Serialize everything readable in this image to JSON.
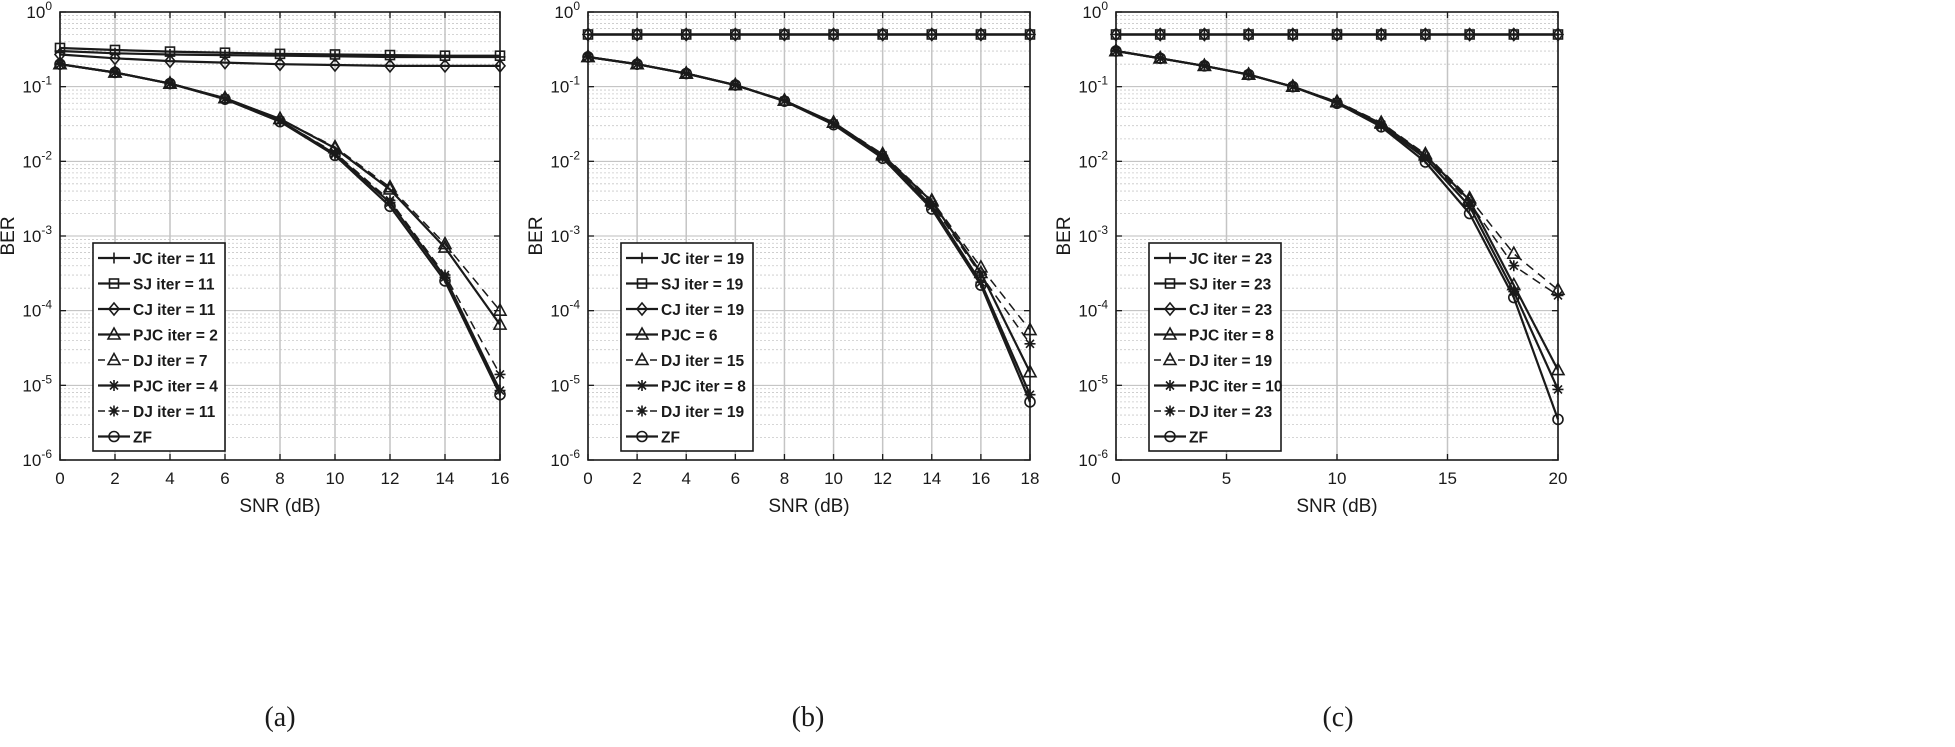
{
  "chart_data": [
    {
      "type": "line",
      "panel": "(a)",
      "caption": "(a)",
      "xlabel": "SNR (dB)",
      "ylabel": "BER",
      "yscale": "log",
      "xlim": [
        0,
        16
      ],
      "ylim": [
        1e-06,
        1
      ],
      "xticks": [
        0,
        2,
        4,
        6,
        8,
        10,
        12,
        14,
        16
      ],
      "xtick_labels": [
        "0",
        "2",
        "4",
        "6",
        "8",
        "10",
        "12",
        "14",
        "16"
      ],
      "yticks": [
        {
          "value": 1,
          "base": "10",
          "exp": "0"
        },
        {
          "value": 0.1,
          "base": "10",
          "exp": "-1"
        },
        {
          "value": 0.01,
          "base": "10",
          "exp": "-2"
        },
        {
          "value": 0.001,
          "base": "10",
          "exp": "-3"
        },
        {
          "value": 0.0001,
          "base": "10",
          "exp": "-4"
        },
        {
          "value": 1e-05,
          "base": "10",
          "exp": "-5"
        },
        {
          "value": 1e-06,
          "base": "10",
          "exp": "-6"
        }
      ],
      "grid": true,
      "legend_position": "lower-left",
      "x": [
        0,
        2,
        4,
        6,
        8,
        10,
        12,
        14,
        16
      ],
      "series": [
        {
          "name": "JC iter = 11",
          "marker": "plus",
          "dashed": false,
          "values": [
            0.3,
            0.28,
            0.27,
            0.265,
            0.26,
            0.255,
            0.25,
            0.25,
            0.25
          ]
        },
        {
          "name": "SJ iter = 11",
          "marker": "square",
          "dashed": false,
          "values": [
            0.33,
            0.31,
            0.295,
            0.285,
            0.275,
            0.27,
            0.265,
            0.26,
            0.26
          ]
        },
        {
          "name": "CJ iter = 11",
          "marker": "diamond",
          "dashed": false,
          "values": [
            0.27,
            0.24,
            0.22,
            0.21,
            0.2,
            0.195,
            0.19,
            0.19,
            0.19
          ]
        },
        {
          "name": "PJC iter = 2",
          "marker": "triangle",
          "dashed": false,
          "values": [
            0.2,
            0.155,
            0.11,
            0.07,
            0.037,
            0.015,
            0.0042,
            0.0007,
            6.5e-05
          ]
        },
        {
          "name": "DJ iter = 7",
          "marker": "triangle",
          "dashed": true,
          "values": [
            0.2,
            0.155,
            0.11,
            0.07,
            0.037,
            0.0155,
            0.0045,
            0.00078,
            0.0001
          ]
        },
        {
          "name": "PJC iter = 4",
          "marker": "asterisk",
          "dashed": false,
          "values": [
            0.2,
            0.155,
            0.11,
            0.069,
            0.035,
            0.0125,
            0.0028,
            0.00028,
            8.5e-06
          ]
        },
        {
          "name": "DJ iter = 11",
          "marker": "asterisk",
          "dashed": true,
          "values": [
            0.2,
            0.155,
            0.11,
            0.069,
            0.035,
            0.013,
            0.003,
            0.0003,
            1.4e-05
          ]
        },
        {
          "name": "ZF",
          "marker": "circle",
          "dashed": false,
          "values": [
            0.2,
            0.155,
            0.11,
            0.068,
            0.034,
            0.012,
            0.0025,
            0.00025,
            7.5e-06
          ]
        }
      ]
    },
    {
      "type": "line",
      "panel": "(b)",
      "caption": "(b)",
      "xlabel": "SNR (dB)",
      "ylabel": "BER",
      "yscale": "log",
      "xlim": [
        0,
        18
      ],
      "ylim": [
        1e-06,
        1
      ],
      "xticks": [
        0,
        2,
        4,
        6,
        8,
        10,
        12,
        14,
        16,
        18
      ],
      "xtick_labels": [
        "0",
        "2",
        "4",
        "6",
        "8",
        "10",
        "12",
        "14",
        "16",
        "18"
      ],
      "yticks": [
        {
          "value": 1,
          "base": "10",
          "exp": "0"
        },
        {
          "value": 0.1,
          "base": "10",
          "exp": "-1"
        },
        {
          "value": 0.01,
          "base": "10",
          "exp": "-2"
        },
        {
          "value": 0.001,
          "base": "10",
          "exp": "-3"
        },
        {
          "value": 0.0001,
          "base": "10",
          "exp": "-4"
        },
        {
          "value": 1e-05,
          "base": "10",
          "exp": "-5"
        },
        {
          "value": 1e-06,
          "base": "10",
          "exp": "-6"
        }
      ],
      "grid": true,
      "legend_position": "lower-left",
      "x": [
        0,
        2,
        4,
        6,
        8,
        10,
        12,
        14,
        16,
        18
      ],
      "series": [
        {
          "name": "JC iter = 19",
          "marker": "plus",
          "dashed": false,
          "values": [
            0.5,
            0.5,
            0.5,
            0.5,
            0.5,
            0.5,
            0.5,
            0.5,
            0.5,
            0.5
          ]
        },
        {
          "name": "SJ iter = 19",
          "marker": "square",
          "dashed": false,
          "values": [
            0.5,
            0.5,
            0.5,
            0.5,
            0.5,
            0.5,
            0.5,
            0.5,
            0.5,
            0.5
          ]
        },
        {
          "name": "CJ iter = 19",
          "marker": "diamond",
          "dashed": false,
          "values": [
            0.5,
            0.5,
            0.5,
            0.5,
            0.5,
            0.5,
            0.5,
            0.5,
            0.5,
            0.5
          ]
        },
        {
          "name": "PJC = 6",
          "marker": "triangle",
          "dashed": false,
          "values": [
            0.25,
            0.2,
            0.15,
            0.105,
            0.065,
            0.033,
            0.012,
            0.0029,
            0.00032,
            1.5e-05
          ]
        },
        {
          "name": "DJ iter = 15",
          "marker": "triangle",
          "dashed": true,
          "values": [
            0.25,
            0.2,
            0.15,
            0.105,
            0.065,
            0.033,
            0.0125,
            0.003,
            0.00038,
            5.5e-05
          ]
        },
        {
          "name": "PJC iter = 8",
          "marker": "asterisk",
          "dashed": false,
          "values": [
            0.25,
            0.2,
            0.15,
            0.105,
            0.065,
            0.032,
            0.0115,
            0.0025,
            0.00024,
            7.5e-06
          ]
        },
        {
          "name": "DJ iter = 19",
          "marker": "asterisk",
          "dashed": true,
          "values": [
            0.25,
            0.2,
            0.15,
            0.105,
            0.065,
            0.032,
            0.012,
            0.0027,
            0.0003,
            3.6e-05
          ]
        },
        {
          "name": "ZF",
          "marker": "circle",
          "dashed": false,
          "values": [
            0.25,
            0.2,
            0.15,
            0.105,
            0.064,
            0.031,
            0.011,
            0.0023,
            0.00022,
            6e-06
          ]
        }
      ]
    },
    {
      "type": "line",
      "panel": "(c)",
      "caption": "(c)",
      "xlabel": "SNR (dB)",
      "ylabel": "BER",
      "yscale": "log",
      "xlim": [
        0,
        20
      ],
      "ylim": [
        1e-06,
        1
      ],
      "xticks": [
        0,
        5,
        10,
        15,
        20
      ],
      "xtick_labels": [
        "0",
        "5",
        "10",
        "15",
        "20"
      ],
      "yticks": [
        {
          "value": 1,
          "base": "10",
          "exp": "0"
        },
        {
          "value": 0.1,
          "base": "10",
          "exp": "-1"
        },
        {
          "value": 0.01,
          "base": "10",
          "exp": "-2"
        },
        {
          "value": 0.001,
          "base": "10",
          "exp": "-3"
        },
        {
          "value": 0.0001,
          "base": "10",
          "exp": "-4"
        },
        {
          "value": 1e-05,
          "base": "10",
          "exp": "-5"
        },
        {
          "value": 1e-06,
          "base": "10",
          "exp": "-6"
        }
      ],
      "grid": true,
      "legend_position": "lower-left",
      "x": [
        0,
        2,
        4,
        6,
        8,
        10,
        12,
        14,
        16,
        18,
        20
      ],
      "series": [
        {
          "name": "JC iter = 23",
          "marker": "plus",
          "dashed": false,
          "values": [
            0.5,
            0.5,
            0.5,
            0.5,
            0.5,
            0.5,
            0.5,
            0.5,
            0.5,
            0.5,
            0.5
          ]
        },
        {
          "name": "SJ iter = 23",
          "marker": "square",
          "dashed": false,
          "values": [
            0.5,
            0.5,
            0.5,
            0.5,
            0.5,
            0.5,
            0.5,
            0.5,
            0.5,
            0.5,
            0.5
          ]
        },
        {
          "name": "CJ iter = 23",
          "marker": "diamond",
          "dashed": false,
          "values": [
            0.5,
            0.5,
            0.5,
            0.5,
            0.5,
            0.5,
            0.5,
            0.5,
            0.5,
            0.5,
            0.5
          ]
        },
        {
          "name": "PJC iter = 8",
          "marker": "triangle",
          "dashed": false,
          "values": [
            0.3,
            0.24,
            0.19,
            0.145,
            0.1,
            0.062,
            0.032,
            0.012,
            0.003,
            0.00022,
            1.6e-05
          ]
        },
        {
          "name": "DJ iter = 19",
          "marker": "triangle",
          "dashed": true,
          "values": [
            0.3,
            0.24,
            0.19,
            0.145,
            0.1,
            0.063,
            0.033,
            0.0125,
            0.0032,
            0.00058,
            0.00019
          ]
        },
        {
          "name": "PJC iter = 10",
          "marker": "asterisk",
          "dashed": false,
          "values": [
            0.3,
            0.24,
            0.19,
            0.145,
            0.1,
            0.061,
            0.03,
            0.011,
            0.0025,
            0.00018,
            8.8e-06
          ]
        },
        {
          "name": "DJ iter = 23",
          "marker": "asterisk",
          "dashed": true,
          "values": [
            0.3,
            0.24,
            0.19,
            0.145,
            0.1,
            0.062,
            0.031,
            0.0115,
            0.0028,
            0.0004,
            0.00016
          ]
        },
        {
          "name": "ZF",
          "marker": "circle",
          "dashed": false,
          "values": [
            0.3,
            0.24,
            0.19,
            0.145,
            0.1,
            0.06,
            0.029,
            0.0098,
            0.002,
            0.00015,
            3.5e-06
          ]
        }
      ]
    }
  ]
}
